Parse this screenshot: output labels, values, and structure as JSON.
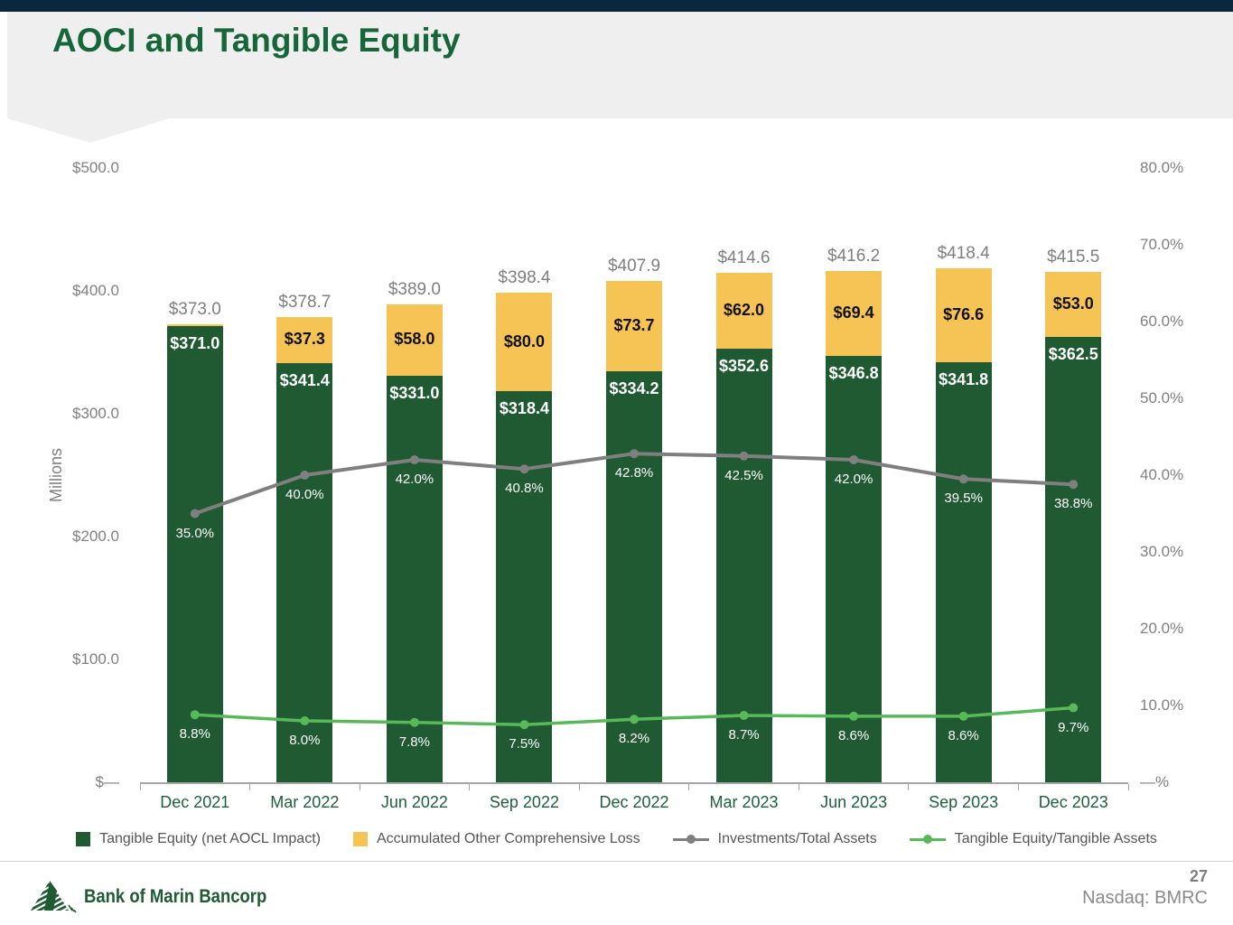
{
  "slide": {
    "title": "AOCI and Tangible Equity"
  },
  "chart_data": {
    "type": "combo_stacked_bar_line",
    "title": "AOCI and Tangible Equity",
    "categories": [
      "Dec 2021",
      "Mar 2022",
      "Jun 2022",
      "Sep 2022",
      "Dec 2022",
      "Mar 2023",
      "Jun 2023",
      "Sep 2023",
      "Dec 2023"
    ],
    "bar_series": [
      {
        "name": "Tangible Equity (net AOCL Impact)",
        "color": "#1f5a33",
        "label_color": "#ffffff",
        "values": [
          371.0,
          341.4,
          331.0,
          318.4,
          334.2,
          352.6,
          346.8,
          341.8,
          362.5
        ],
        "labels": [
          "$371.0",
          "$341.4",
          "$331.0",
          "$318.4",
          "$334.2",
          "$352.6",
          "$346.8",
          "$341.8",
          "$362.5"
        ]
      },
      {
        "name": "Accumulated Other Comprehensive Loss",
        "color": "#f6c355",
        "label_color": "#111111",
        "values": [
          2.0,
          37.3,
          58.0,
          80.0,
          73.7,
          62.0,
          69.4,
          76.6,
          53.0
        ],
        "labels": [
          null,
          "$37.3",
          "$58.0",
          "$80.0",
          "$73.7",
          "$62.0",
          "$69.4",
          "$76.6",
          "$53.0"
        ]
      }
    ],
    "total_labels": [
      "$373.0",
      "$378.7",
      "$389.0",
      "$398.4",
      "$407.9",
      "$414.6",
      "$416.2",
      "$418.4",
      "$415.5"
    ],
    "line_series": [
      {
        "name": "Investments/Total Assets",
        "color": "#7f7f7f",
        "stroke_width": 4,
        "values": [
          35.0,
          40.0,
          42.0,
          40.8,
          42.8,
          42.5,
          42.0,
          39.5,
          38.8
        ],
        "labels": [
          "35.0%",
          "40.0%",
          "42.0%",
          "40.8%",
          "42.8%",
          "42.5%",
          "42.0%",
          "39.5%",
          "38.8%"
        ]
      },
      {
        "name": "Tangible Equity/Tangible Assets",
        "color": "#58b958",
        "stroke_width": 3.5,
        "values": [
          8.8,
          8.0,
          7.8,
          7.5,
          8.2,
          8.7,
          8.6,
          8.6,
          9.7
        ],
        "labels": [
          "8.8%",
          "8.0%",
          "7.8%",
          "7.5%",
          "8.2%",
          "8.7%",
          "8.6%",
          "8.6%",
          "9.7%"
        ]
      }
    ],
    "left_axis": {
      "title": "Millions",
      "max": 500,
      "min": 0,
      "ticks": [
        {
          "label": "$500.0",
          "value": 500
        },
        {
          "label": "$400.0",
          "value": 400
        },
        {
          "label": "$300.0",
          "value": 300
        },
        {
          "label": "$200.0",
          "value": 200
        },
        {
          "label": "$100.0",
          "value": 100
        },
        {
          "label": "$—",
          "value": 0
        }
      ]
    },
    "right_axis": {
      "max": 80,
      "min": 0,
      "ticks": [
        {
          "label": "80.0%",
          "value": 80
        },
        {
          "label": "70.0%",
          "value": 70
        },
        {
          "label": "60.0%",
          "value": 60
        },
        {
          "label": "50.0%",
          "value": 50
        },
        {
          "label": "40.0%",
          "value": 40
        },
        {
          "label": "30.0%",
          "value": 30
        },
        {
          "label": "20.0%",
          "value": 20
        },
        {
          "label": "10.0%",
          "value": 10
        },
        {
          "label": "—%",
          "value": 0
        }
      ]
    },
    "grid": "off",
    "legend_position": "bottom"
  },
  "footer": {
    "brand": "Bank of Marin Bancorp",
    "page_number": "27",
    "ticker": "Nasdaq: BMRC"
  }
}
